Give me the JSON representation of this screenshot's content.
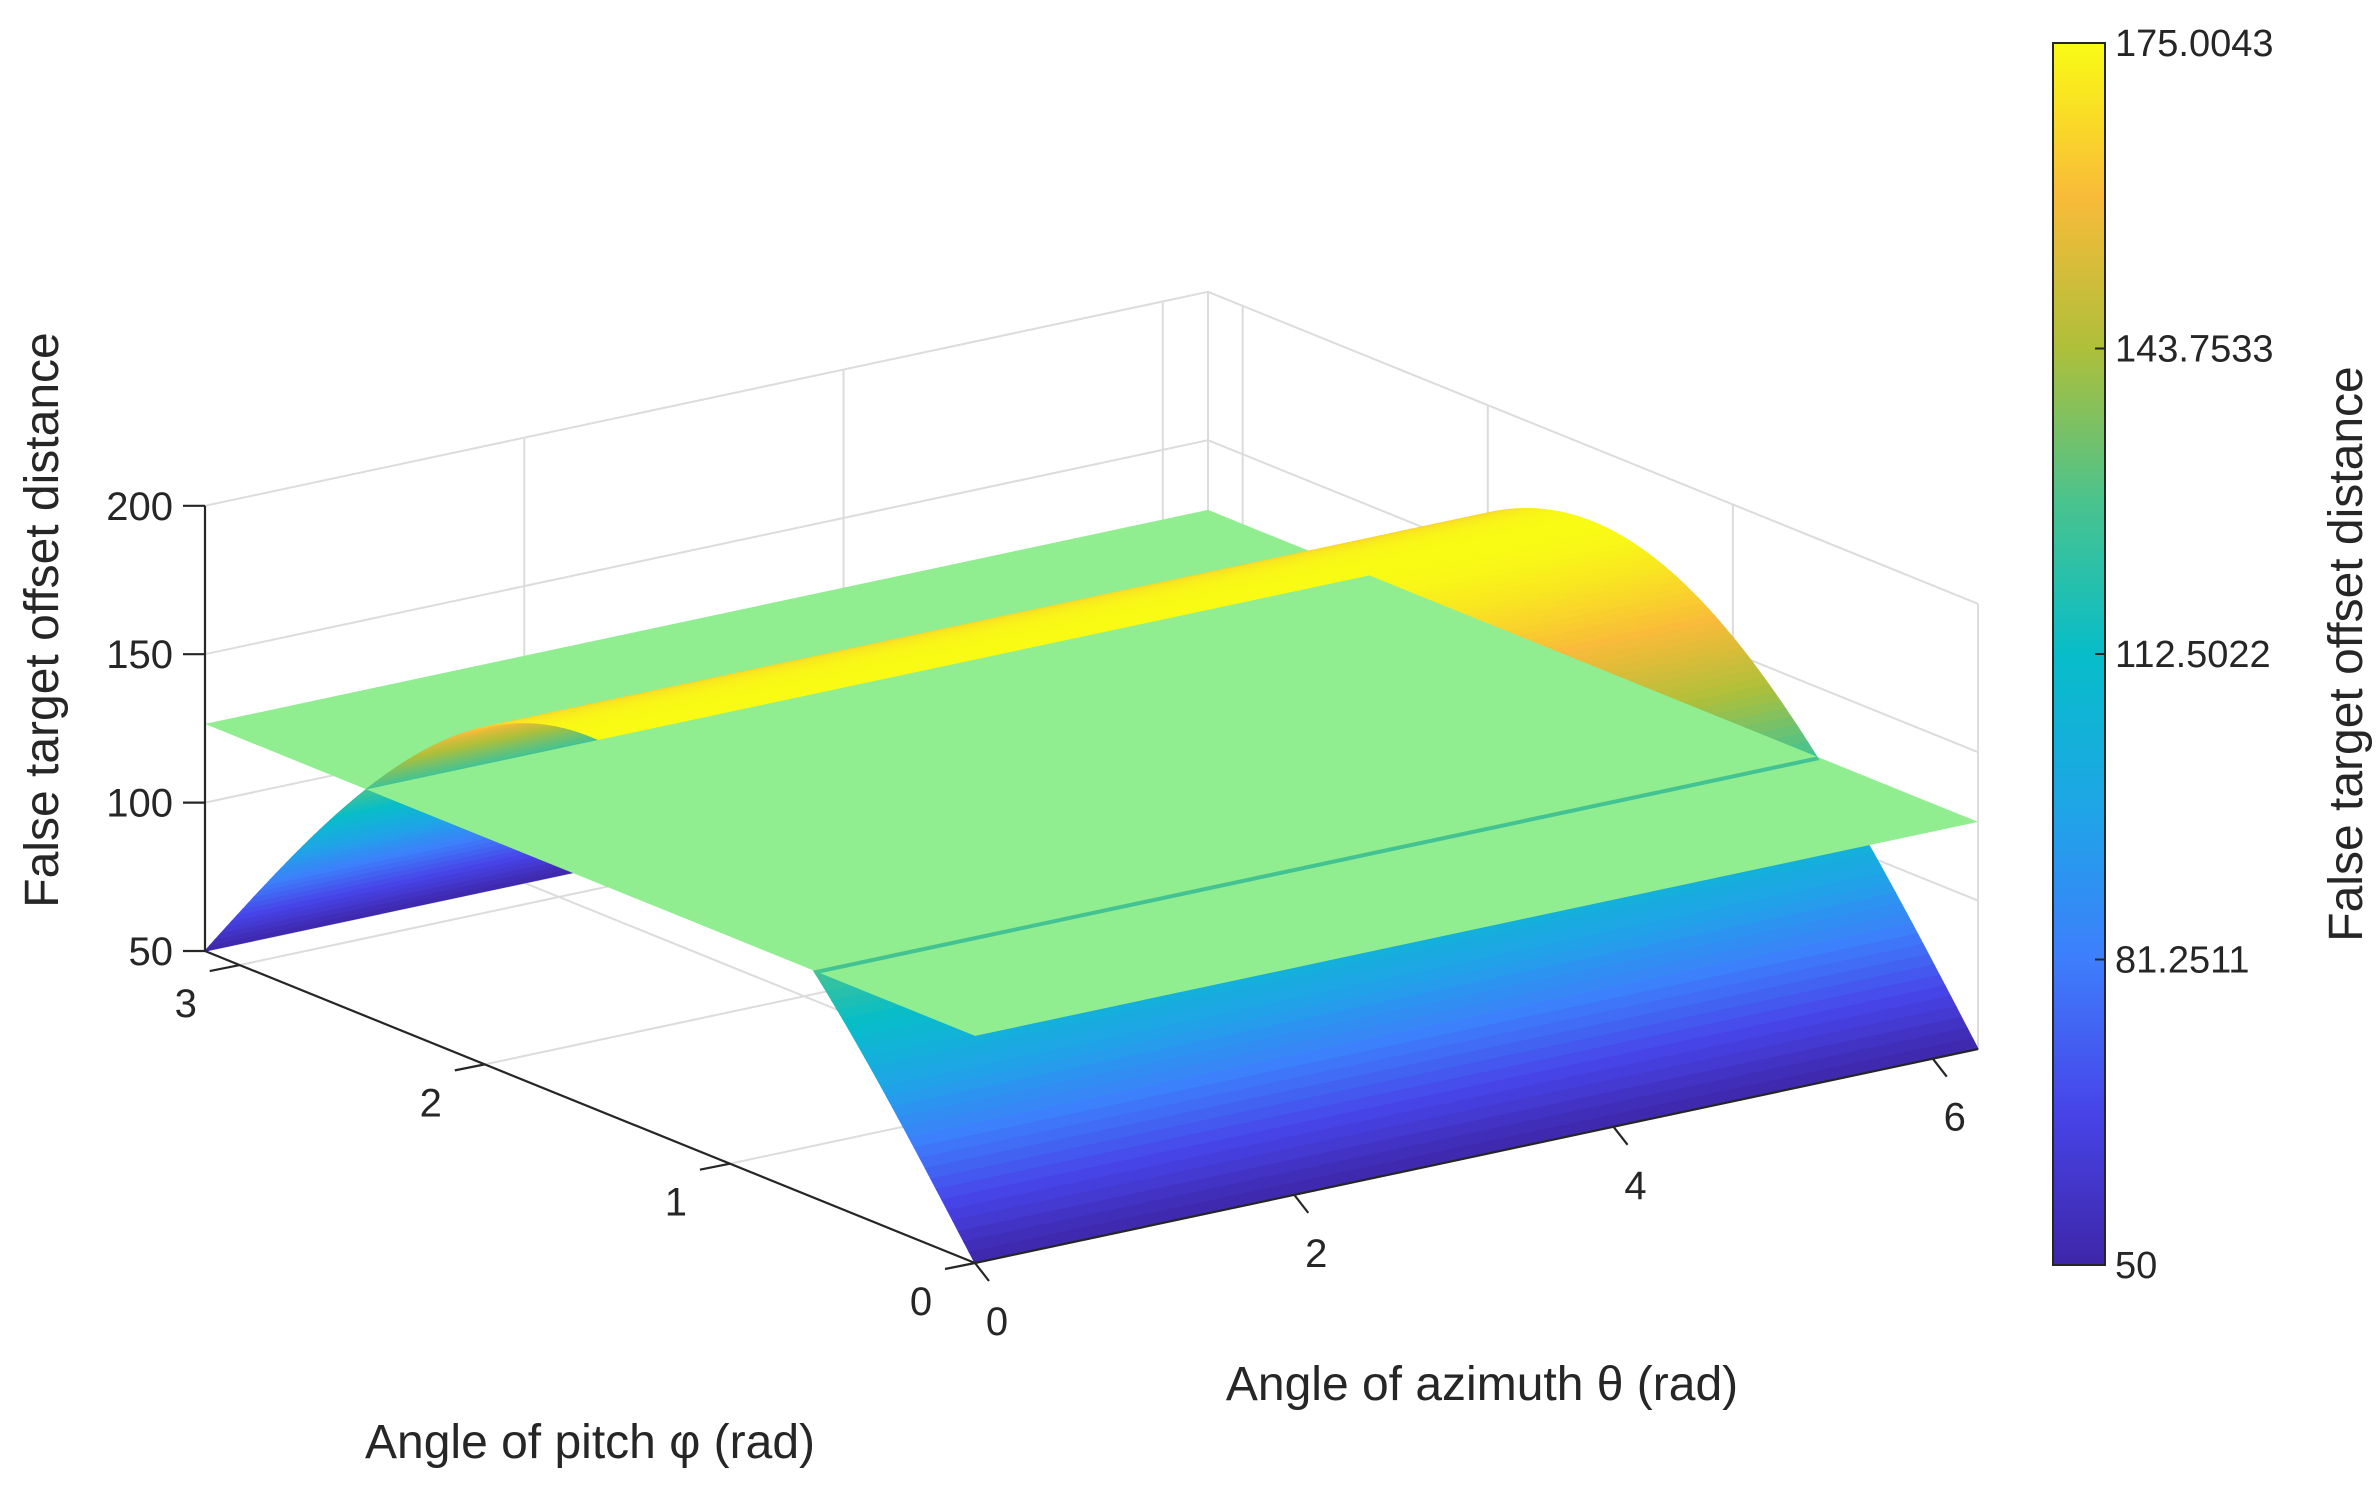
{
  "chart_data": {
    "type": "surface",
    "title": "",
    "xlabel": "Angle of azimuth θ (rad)",
    "ylabel": "Angle of pitch φ (rad)",
    "zlabel": "False target offset distance",
    "xlim": [
      0,
      6.2832
    ],
    "ylim": [
      0,
      3.1416
    ],
    "zlim": [
      50,
      200
    ],
    "xticks": [
      "0",
      "2",
      "4",
      "6"
    ],
    "yticks": [
      "0",
      "1",
      "2",
      "3"
    ],
    "zticks": [
      "50",
      "100",
      "150",
      "200"
    ],
    "grid": true,
    "colormap": "parula",
    "series": [
      {
        "kind": "surface",
        "formula": "z = 50 + 125.0043 * sin(phi)",
        "peak": 175.0043,
        "base": 50,
        "phi_samples": [
          0,
          0.3927,
          0.7854,
          1.1781,
          1.5708,
          1.9635,
          2.3562,
          2.7489,
          3.1416
        ],
        "z_samples": [
          50,
          97.84,
          138.39,
          165.49,
          175.0043,
          165.49,
          138.39,
          97.84,
          50
        ]
      },
      {
        "kind": "plane",
        "z": 126.5,
        "color": "#90ee90"
      }
    ],
    "colorbar": {
      "label": "False target offset distance",
      "min": 50,
      "max": 175.0043,
      "ticks": [
        "50",
        "81.2511",
        "112.5022",
        "143.7533",
        "175.0043"
      ],
      "placement": "right"
    }
  }
}
